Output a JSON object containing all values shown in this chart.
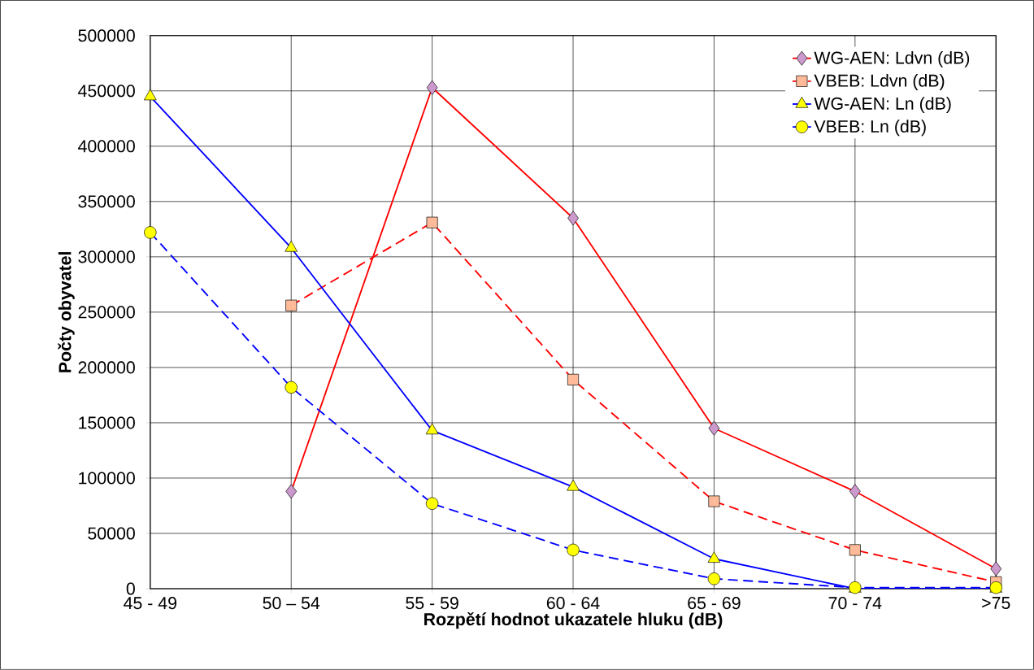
{
  "chart_data": {
    "type": "line",
    "xlabel": "Rozpětí hodnot ukazatele hluku (dB)",
    "ylabel": "Počty obyvatel",
    "categories": [
      "45 - 49",
      "50 – 54",
      "55 - 59",
      "60 - 64",
      "65 - 69",
      "70 - 74",
      ">75"
    ],
    "series": [
      {
        "name": "WG-AEN: Ldvn (dB)",
        "color": "#ff0000",
        "marker": "diamond",
        "line_style": "solid",
        "values": [
          null,
          88000,
          453000,
          335000,
          145000,
          88000,
          18000
        ]
      },
      {
        "name": "VBEB: Ldvn (dB)",
        "color": "#ff0000",
        "marker": "square",
        "line_style": "dashed",
        "values": [
          null,
          256000,
          331000,
          189000,
          79000,
          35000,
          6000
        ]
      },
      {
        "name": "WG-AEN: Ln (dB)",
        "color": "#0000ff",
        "marker": "triangle",
        "line_style": "solid",
        "values": [
          445000,
          308000,
          143000,
          92000,
          27000,
          0,
          0
        ]
      },
      {
        "name": "VBEB: Ln (dB)",
        "color": "#0000ff",
        "marker": "circle",
        "line_style": "dashed",
        "values": [
          322000,
          182000,
          77000,
          35000,
          9000,
          1000,
          1000
        ]
      }
    ],
    "ylim": [
      0,
      500000
    ],
    "yticks": [
      0,
      50000,
      100000,
      150000,
      200000,
      250000,
      300000,
      350000,
      400000,
      450000,
      500000
    ],
    "grid": true,
    "legend": "top right"
  }
}
